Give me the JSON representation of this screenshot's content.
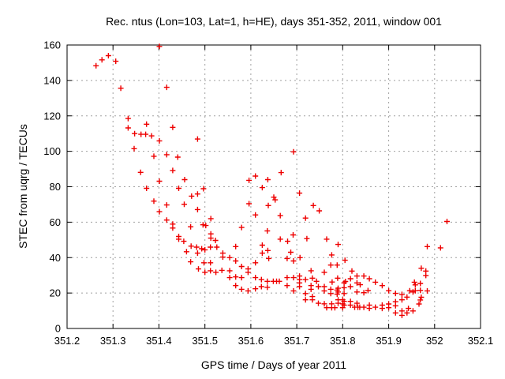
{
  "chart_data": {
    "type": "scatter",
    "title": "Rec. ntus (Lon=103, Lat=1, h=HE), days 351-352, 2011, window 001",
    "xlabel": "GPS time / Days of year 2011",
    "ylabel": "STEC from uqrg / TECUs",
    "xlim": [
      351.2,
      352.1
    ],
    "ylim": [
      0,
      160
    ],
    "x_ticks": [
      "351.2",
      "351.3",
      "351.4",
      "351.5",
      "351.6",
      "351.7",
      "351.8",
      "351.9",
      "352",
      "352.1"
    ],
    "y_ticks": [
      "0",
      "20",
      "40",
      "60",
      "80",
      "100",
      "120",
      "140",
      "160"
    ],
    "grid": true,
    "legend_position": "none",
    "marker": "plus",
    "marker_color": "#ee0000",
    "grid_color": "#a0a0a0",
    "border_color": "#000000",
    "background_color": "#ffffff",
    "points": [
      [
        351.263,
        148.3
      ],
      [
        351.276,
        151.6
      ],
      [
        351.29,
        154.0
      ],
      [
        351.306,
        150.8
      ],
      [
        351.317,
        135.6
      ],
      [
        351.401,
        159.2
      ],
      [
        351.417,
        136.1
      ],
      [
        351.333,
        118.5
      ],
      [
        351.333,
        113.2
      ],
      [
        351.373,
        115.3
      ],
      [
        351.347,
        110.0
      ],
      [
        351.361,
        109.6
      ],
      [
        351.371,
        109.6
      ],
      [
        351.384,
        108.7
      ],
      [
        351.401,
        105.9
      ],
      [
        351.43,
        113.5
      ],
      [
        351.484,
        106.9
      ],
      [
        351.346,
        101.5
      ],
      [
        351.389,
        97.2
      ],
      [
        351.417,
        98.1
      ],
      [
        351.441,
        96.7
      ],
      [
        351.693,
        99.7
      ],
      [
        351.36,
        88.1
      ],
      [
        351.43,
        89.2
      ],
      [
        351.401,
        83.1
      ],
      [
        351.456,
        84.0
      ],
      [
        351.596,
        83.6
      ],
      [
        351.61,
        86.0
      ],
      [
        351.625,
        79.5
      ],
      [
        351.637,
        84.0
      ],
      [
        351.666,
        88.0
      ],
      [
        351.373,
        79.1
      ],
      [
        351.443,
        79.1
      ],
      [
        351.497,
        78.9
      ],
      [
        351.471,
        74.7
      ],
      [
        351.484,
        75.9
      ],
      [
        351.389,
        71.9
      ],
      [
        351.417,
        69.7
      ],
      [
        351.455,
        70.1
      ],
      [
        351.401,
        65.9
      ],
      [
        351.484,
        67.1
      ],
      [
        351.65,
        74.1
      ],
      [
        351.653,
        72.6
      ],
      [
        351.596,
        70.4
      ],
      [
        351.638,
        69.4
      ],
      [
        351.61,
        64.1
      ],
      [
        351.706,
        76.4
      ],
      [
        351.736,
        69.4
      ],
      [
        351.749,
        66.4
      ],
      [
        351.417,
        61.2
      ],
      [
        351.43,
        58.9
      ],
      [
        351.43,
        56.7
      ],
      [
        351.469,
        57.4
      ],
      [
        351.496,
        58.5
      ],
      [
        351.502,
        58.1
      ],
      [
        351.513,
        62.0
      ],
      [
        351.58,
        57.0
      ],
      [
        351.636,
        55.1
      ],
      [
        351.664,
        63.7
      ],
      [
        351.719,
        62.3
      ],
      [
        351.722,
        50.7
      ],
      [
        351.443,
        51.9
      ],
      [
        351.443,
        50.4
      ],
      [
        351.454,
        49.2
      ],
      [
        351.513,
        53.4
      ],
      [
        351.513,
        51.0
      ],
      [
        351.523,
        49.7
      ],
      [
        351.664,
        50.4
      ],
      [
        351.68,
        49.2
      ],
      [
        351.692,
        52.8
      ],
      [
        351.765,
        50.4
      ],
      [
        351.79,
        47.4
      ],
      [
        351.47,
        46.5
      ],
      [
        351.482,
        45.9
      ],
      [
        351.493,
        45.0
      ],
      [
        351.5,
        44.4
      ],
      [
        351.46,
        43.3
      ],
      [
        351.484,
        42.5
      ],
      [
        351.567,
        46.2
      ],
      [
        351.512,
        45.9
      ],
      [
        351.526,
        45.9
      ],
      [
        351.625,
        47.0
      ],
      [
        351.539,
        42.5
      ],
      [
        351.539,
        40.3
      ],
      [
        351.554,
        40.0
      ],
      [
        351.567,
        38.1
      ],
      [
        351.512,
        37.1
      ],
      [
        351.469,
        37.6
      ],
      [
        351.498,
        37.1
      ],
      [
        351.61,
        37.1
      ],
      [
        351.625,
        42.5
      ],
      [
        351.637,
        44.0
      ],
      [
        351.639,
        39.5
      ],
      [
        351.679,
        39.5
      ],
      [
        351.687,
        43.0
      ],
      [
        351.693,
        38.1
      ],
      [
        351.707,
        40.0
      ],
      [
        351.776,
        41.5
      ],
      [
        351.805,
        38.5
      ],
      [
        351.486,
        33.6
      ],
      [
        351.5,
        31.7
      ],
      [
        351.537,
        32.8
      ],
      [
        351.524,
        31.7
      ],
      [
        351.512,
        32.6
      ],
      [
        351.554,
        32.6
      ],
      [
        351.58,
        35.0
      ],
      [
        351.594,
        33.6
      ],
      [
        351.594,
        31.7
      ],
      [
        351.731,
        32.6
      ],
      [
        351.76,
        31.7
      ],
      [
        351.774,
        35.8
      ],
      [
        351.788,
        35.8
      ],
      [
        351.82,
        32.4
      ],
      [
        351.831,
        29.6
      ],
      [
        351.846,
        29.6
      ],
      [
        351.971,
        34.0
      ],
      [
        351.981,
        32.4
      ],
      [
        351.981,
        29.9
      ],
      [
        351.554,
        28.7
      ],
      [
        351.567,
        29.1
      ],
      [
        351.58,
        28.7
      ],
      [
        351.61,
        28.7
      ],
      [
        351.623,
        27.6
      ],
      [
        351.636,
        26.6
      ],
      [
        351.649,
        26.6
      ],
      [
        351.656,
        26.6
      ],
      [
        351.662,
        26.6
      ],
      [
        351.679,
        28.7
      ],
      [
        351.693,
        28.7
      ],
      [
        351.706,
        29.6
      ],
      [
        351.706,
        27.6
      ],
      [
        351.719,
        27.6
      ],
      [
        351.734,
        28.4
      ],
      [
        351.743,
        26.6
      ],
      [
        351.706,
        25.7
      ],
      [
        351.706,
        23.6
      ],
      [
        351.777,
        26.2
      ],
      [
        351.789,
        28.4
      ],
      [
        351.806,
        26.5
      ],
      [
        351.817,
        28.1
      ],
      [
        351.803,
        25.7
      ],
      [
        351.831,
        25.7
      ],
      [
        351.838,
        24.7
      ],
      [
        351.858,
        28.1
      ],
      [
        351.871,
        26.1
      ],
      [
        351.886,
        24.2
      ],
      [
        351.956,
        26.1
      ],
      [
        351.958,
        24.6
      ],
      [
        351.969,
        25.4
      ],
      [
        351.567,
        24.2
      ],
      [
        351.61,
        22.4
      ],
      [
        351.623,
        23.6
      ],
      [
        351.636,
        23.2
      ],
      [
        351.679,
        24.2
      ],
      [
        351.731,
        24.2
      ],
      [
        351.747,
        23.6
      ],
      [
        351.76,
        23.6
      ],
      [
        351.803,
        23.0
      ],
      [
        351.817,
        23.6
      ],
      [
        351.58,
        22.1
      ],
      [
        351.594,
        21.2
      ],
      [
        351.693,
        21.2
      ],
      [
        351.731,
        22.1
      ],
      [
        351.76,
        21.2
      ],
      [
        351.774,
        22.1
      ],
      [
        351.774,
        19.7
      ],
      [
        351.788,
        21.7
      ],
      [
        351.788,
        19.4
      ],
      [
        351.79,
        22.7
      ],
      [
        351.79,
        20.6
      ],
      [
        351.719,
        19.7
      ],
      [
        351.734,
        18.0
      ],
      [
        351.803,
        19.7
      ],
      [
        351.831,
        20.6
      ],
      [
        351.846,
        20.2
      ],
      [
        351.855,
        21.4
      ],
      [
        351.9,
        21.3
      ],
      [
        351.915,
        19.8
      ],
      [
        351.929,
        19.2
      ],
      [
        351.946,
        21.3
      ],
      [
        351.953,
        20.6
      ],
      [
        351.958,
        21.3
      ],
      [
        351.969,
        21.5
      ],
      [
        351.984,
        21.2
      ],
      [
        351.719,
        16.2
      ],
      [
        351.734,
        16.2
      ],
      [
        351.747,
        14.2
      ],
      [
        351.76,
        13.9
      ],
      [
        351.765,
        11.7
      ],
      [
        351.776,
        13.9
      ],
      [
        351.776,
        11.7
      ],
      [
        351.783,
        11.7
      ],
      [
        351.79,
        16.2
      ],
      [
        351.79,
        14.2
      ],
      [
        351.8,
        16.2
      ],
      [
        351.8,
        13.9
      ],
      [
        351.8,
        11.7
      ],
      [
        351.803,
        15.3
      ],
      [
        351.803,
        13.2
      ],
      [
        351.817,
        15.3
      ],
      [
        351.817,
        13.2
      ],
      [
        351.826,
        12.0
      ],
      [
        351.831,
        14.2
      ],
      [
        351.833,
        12.0
      ],
      [
        351.837,
        12.0
      ],
      [
        351.846,
        12.0
      ],
      [
        351.858,
        13.2
      ],
      [
        351.858,
        11.3
      ],
      [
        351.871,
        12.0
      ],
      [
        351.886,
        13.2
      ],
      [
        351.886,
        11.3
      ],
      [
        351.9,
        13.8
      ],
      [
        351.9,
        11.7
      ],
      [
        351.915,
        15.1
      ],
      [
        351.915,
        12.8
      ],
      [
        351.929,
        16.2
      ],
      [
        351.94,
        17.7
      ],
      [
        351.915,
        8.8
      ],
      [
        351.929,
        9.9
      ],
      [
        351.929,
        7.4
      ],
      [
        351.94,
        8.8
      ],
      [
        351.943,
        11.3
      ],
      [
        351.953,
        9.9
      ],
      [
        351.971,
        17.6
      ],
      [
        351.969,
        16.1
      ],
      [
        351.966,
        13.8
      ],
      [
        351.984,
        46.2
      ],
      [
        352.013,
        45.5
      ],
      [
        352.027,
        60.4
      ]
    ]
  }
}
